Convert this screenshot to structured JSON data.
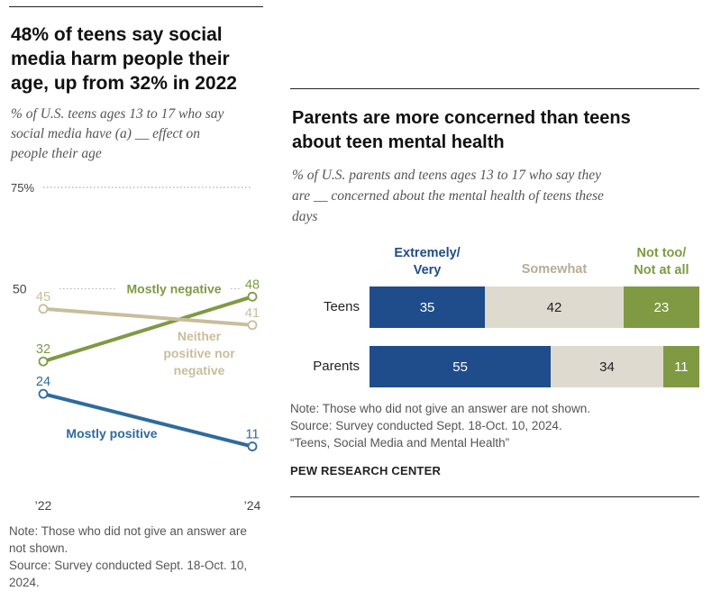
{
  "left_panel": {
    "title_lines": [
      "48% of teens say social",
      "media harm people their",
      "age, up from 32% in 2022"
    ],
    "subtitle_lines": [
      "% of U.S. teens ages 13 to 17 who say",
      "social media have (a) __ effect on",
      "people their age"
    ],
    "note_lines": [
      "Note: Those who did not give an answer are",
      "not shown.",
      "Source: Survey conducted Sept. 18-Oct. 10,",
      "2024."
    ]
  },
  "right_panel": {
    "title_lines": [
      "Parents are more concerned than teens",
      "about teen mental health"
    ],
    "subtitle_lines": [
      "% of U.S. parents and teens ages 13 to 17 who say they",
      "are __ concerned about the mental health of teens these",
      "days"
    ],
    "note_lines": [
      "Note: Those who did not give an answer are not shown.",
      "Source: Survey conducted Sept. 18-Oct. 10, 2024.",
      "“Teens, Social Media and Mental Health”"
    ],
    "credit": "PEW RESEARCH CENTER"
  },
  "colors": {
    "negative": "#7f9a43",
    "neither": "#c9bd9c",
    "positive": "#2f6a9e",
    "extremely": "#1f4c8a",
    "somewhat": "#dedad0",
    "somewhat_label": "#b5ad96",
    "not_too": "#7f9a43"
  },
  "chart_data": [
    {
      "type": "line",
      "x": [
        "’22",
        "’24"
      ],
      "ylim": [
        0,
        75
      ],
      "y_gridline": 75,
      "y_gridline_label": "75%",
      "y_reference": 50,
      "y_reference_label": "50",
      "series": [
        {
          "name": "Mostly negative",
          "label_lines": [
            "Mostly negative"
          ],
          "values": [
            32,
            48
          ],
          "value_labels": [
            "32",
            "48"
          ]
        },
        {
          "name": "Neither positive nor negative",
          "label_lines": [
            "Neither",
            "positive nor",
            "negative"
          ],
          "values": [
            45,
            41
          ],
          "value_labels": [
            "45",
            "41"
          ]
        },
        {
          "name": "Mostly positive",
          "label_lines": [
            "Mostly positive"
          ],
          "values": [
            24,
            11
          ],
          "value_labels": [
            "24",
            "11"
          ]
        }
      ]
    },
    {
      "type": "bar",
      "orientation": "horizontal",
      "stacked": true,
      "categories": [
        "Teens",
        "Parents"
      ],
      "series": [
        {
          "name": "Extremely/ Very",
          "label_lines": [
            "Extremely/",
            "Very"
          ],
          "values": [
            35,
            55
          ]
        },
        {
          "name": "Somewhat",
          "label_lines": [
            "Somewhat"
          ],
          "values": [
            42,
            34
          ]
        },
        {
          "name": "Not too/ Not at all",
          "label_lines": [
            "Not too/",
            "Not at all"
          ],
          "values": [
            23,
            11
          ]
        }
      ]
    }
  ]
}
